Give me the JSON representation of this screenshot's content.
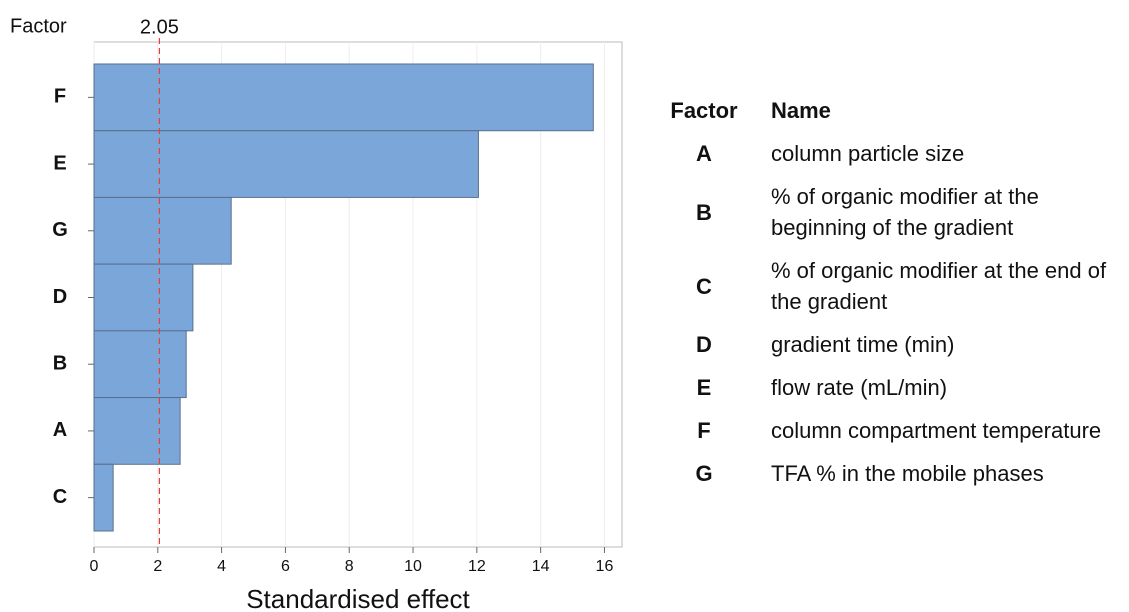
{
  "chart_data": {
    "type": "bar",
    "orientation": "horizontal",
    "y_label": "Factor",
    "x_label": "Standardised effect",
    "categories": [
      "F",
      "E",
      "G",
      "D",
      "B",
      "A",
      "C"
    ],
    "values": [
      15.65,
      12.05,
      4.3,
      3.1,
      2.89,
      2.7,
      0.6
    ],
    "color": "#7ba6d9",
    "xlim": [
      0,
      16.55
    ],
    "xticks": [
      0,
      2,
      4,
      6,
      8,
      10,
      12,
      14,
      16
    ],
    "grid": true,
    "reference_line": {
      "value": 2.05,
      "color": "#e8403a"
    }
  },
  "table": {
    "header": [
      "Factor",
      "Name"
    ],
    "rows": [
      [
        "A",
        "column particle size"
      ],
      [
        "B",
        "% of organic modifier at the beginning of the gradient"
      ],
      [
        "C",
        "% of organic modifier at the end of the gradient"
      ],
      [
        "D",
        "gradient time (min)"
      ],
      [
        "E",
        "flow rate (mL/min)"
      ],
      [
        "F",
        "column compartment temperature"
      ],
      [
        "G",
        "TFA % in the mobile phases"
      ]
    ]
  }
}
